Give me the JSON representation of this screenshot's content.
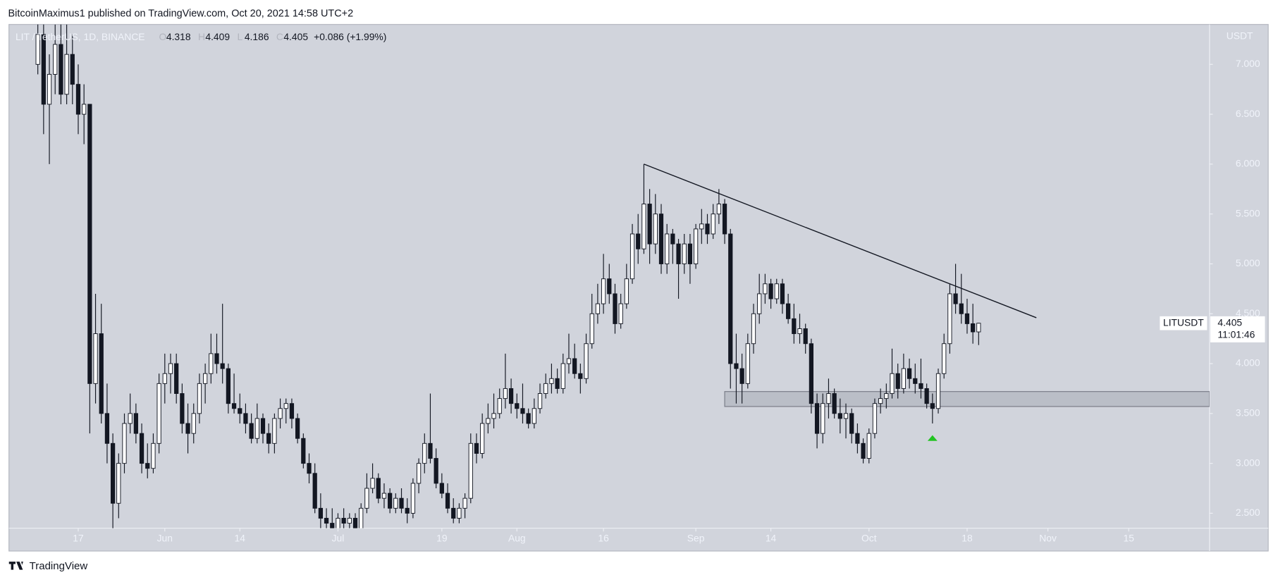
{
  "header": {
    "published": "BitcoinMaximus1 published on TradingView.com, Oct 20, 2021 14:58 UTC+2",
    "brand": "TradingView"
  },
  "chart_data": {
    "type": "candlestick",
    "legend": {
      "symbol": "LIT / TetherUS, 1D, BINANCE",
      "ohlc_labels": [
        "O",
        "H",
        "L",
        "C"
      ],
      "change": "+0.086 (+1.99%)"
    },
    "price_label": {
      "ticker": "LITUSDT",
      "countdown": "11:01:46"
    },
    "y_axis_label": "USDT",
    "x": [
      "May 10",
      "May 11",
      "May 12",
      "May 13",
      "May 14",
      "May 15",
      "May 16",
      "May 17",
      "May 18",
      "May 19",
      "May 20",
      "May 21",
      "May 22",
      "May 23",
      "May 24",
      "May 25",
      "May 26",
      "May 27",
      "May 28",
      "May 29",
      "May 30",
      "May 31",
      "Jun 1",
      "Jun 2",
      "Jun 3",
      "Jun 4",
      "Jun 5",
      "Jun 6",
      "Jun 7",
      "Jun 8",
      "Jun 9",
      "Jun 10",
      "Jun 11",
      "Jun 12",
      "Jun 13",
      "Jun 14",
      "Jun 15",
      "Jun 16",
      "Jun 17",
      "Jun 18",
      "Jun 19",
      "Jun 20",
      "Jun 21",
      "Jun 22",
      "Jun 23",
      "Jun 24",
      "Jun 25",
      "Jun 26",
      "Jun 27",
      "Jun 28",
      "Jun 29",
      "Jun 30",
      "Jul 1",
      "Jul 2",
      "Jul 3",
      "Jul 4",
      "Jul 5",
      "Jul 6",
      "Jul 7",
      "Jul 8",
      "Jul 9",
      "Jul 10",
      "Jul 11",
      "Jul 12",
      "Jul 13",
      "Jul 14",
      "Jul 15",
      "Jul 16",
      "Jul 17",
      "Jul 18",
      "Jul 19",
      "Jul 20",
      "Jul 21",
      "Jul 22",
      "Jul 23",
      "Jul 24",
      "Jul 25",
      "Jul 26",
      "Jul 27",
      "Jul 28",
      "Jul 29",
      "Jul 30",
      "Jul 31",
      "Aug 1",
      "Aug 2",
      "Aug 3",
      "Aug 4",
      "Aug 5",
      "Aug 6",
      "Aug 7",
      "Aug 8",
      "Aug 9",
      "Aug 10",
      "Aug 11",
      "Aug 12",
      "Aug 13",
      "Aug 14",
      "Aug 15",
      "Aug 16",
      "Aug 17",
      "Aug 18",
      "Aug 19",
      "Aug 20",
      "Aug 21",
      "Aug 22",
      "Aug 23",
      "Aug 24",
      "Aug 25",
      "Aug 26",
      "Aug 27",
      "Aug 28",
      "Aug 29",
      "Aug 30",
      "Aug 31",
      "Sep 1",
      "Sep 2",
      "Sep 3",
      "Sep 4",
      "Sep 5",
      "Sep 6",
      "Sep 7",
      "Sep 8",
      "Sep 9",
      "Sep 10",
      "Sep 11",
      "Sep 12",
      "Sep 13",
      "Sep 14",
      "Sep 15",
      "Sep 16",
      "Sep 17",
      "Sep 18",
      "Sep 19",
      "Sep 20",
      "Sep 21",
      "Sep 22",
      "Sep 23",
      "Sep 24",
      "Sep 25",
      "Sep 26",
      "Sep 27",
      "Sep 28",
      "Sep 29",
      "Sep 30",
      "Oct 1",
      "Oct 2",
      "Oct 3",
      "Oct 4",
      "Oct 5",
      "Oct 6",
      "Oct 7",
      "Oct 8",
      "Oct 9",
      "Oct 10",
      "Oct 11",
      "Oct 12",
      "Oct 13",
      "Oct 14",
      "Oct 15",
      "Oct 16",
      "Oct 17",
      "Oct 18",
      "Oct 19",
      "Oct 20"
    ],
    "candles": [
      [
        7.0,
        7.6,
        6.9,
        7.3
      ],
      [
        7.3,
        7.5,
        6.3,
        6.6
      ],
      [
        6.6,
        7.1,
        6.0,
        6.9
      ],
      [
        6.9,
        7.4,
        6.7,
        7.2
      ],
      [
        7.2,
        7.5,
        6.6,
        6.7
      ],
      [
        6.7,
        7.4,
        6.6,
        7.1
      ],
      [
        7.1,
        7.3,
        6.6,
        6.8
      ],
      [
        6.8,
        7.0,
        6.3,
        6.5
      ],
      [
        6.5,
        6.8,
        6.2,
        6.6
      ],
      [
        6.6,
        6.6,
        3.3,
        3.8
      ],
      [
        3.8,
        4.7,
        3.6,
        4.3
      ],
      [
        4.3,
        4.6,
        3.4,
        3.5
      ],
      [
        3.5,
        3.8,
        3.0,
        3.2
      ],
      [
        3.2,
        3.3,
        2.3,
        2.6
      ],
      [
        2.6,
        3.1,
        2.45,
        3.0
      ],
      [
        3.0,
        3.5,
        2.9,
        3.4
      ],
      [
        3.4,
        3.7,
        3.3,
        3.5
      ],
      [
        3.5,
        3.6,
        3.2,
        3.3
      ],
      [
        3.3,
        3.4,
        2.9,
        3.0
      ],
      [
        3.0,
        3.2,
        2.85,
        2.95
      ],
      [
        2.95,
        3.3,
        2.9,
        3.2
      ],
      [
        3.2,
        3.9,
        3.1,
        3.8
      ],
      [
        3.8,
        4.1,
        3.6,
        3.9
      ],
      [
        3.9,
        4.1,
        3.7,
        4.0
      ],
      [
        4.0,
        4.1,
        3.6,
        3.7
      ],
      [
        3.7,
        3.8,
        3.3,
        3.4
      ],
      [
        3.4,
        3.6,
        3.1,
        3.3
      ],
      [
        3.3,
        3.6,
        3.2,
        3.5
      ],
      [
        3.5,
        3.9,
        3.4,
        3.8
      ],
      [
        3.8,
        4.0,
        3.6,
        3.9
      ],
      [
        3.9,
        4.3,
        3.8,
        4.1
      ],
      [
        4.1,
        4.3,
        3.9,
        4.0
      ],
      [
        4.0,
        4.6,
        3.8,
        3.95
      ],
      [
        3.95,
        4.0,
        3.5,
        3.6
      ],
      [
        3.6,
        3.9,
        3.5,
        3.55
      ],
      [
        3.55,
        3.7,
        3.4,
        3.5
      ],
      [
        3.5,
        3.6,
        3.3,
        3.4
      ],
      [
        3.4,
        3.5,
        3.2,
        3.25
      ],
      [
        3.25,
        3.6,
        3.2,
        3.45
      ],
      [
        3.45,
        3.5,
        3.2,
        3.3
      ],
      [
        3.3,
        3.4,
        3.1,
        3.2
      ],
      [
        3.2,
        3.5,
        3.1,
        3.45
      ],
      [
        3.45,
        3.65,
        3.35,
        3.55
      ],
      [
        3.55,
        3.65,
        3.4,
        3.6
      ],
      [
        3.6,
        3.65,
        3.35,
        3.45
      ],
      [
        3.45,
        3.5,
        3.2,
        3.25
      ],
      [
        3.25,
        3.3,
        2.95,
        3.0
      ],
      [
        3.0,
        3.1,
        2.8,
        2.9
      ],
      [
        2.9,
        3.0,
        2.5,
        2.55
      ],
      [
        2.55,
        2.7,
        2.35,
        2.45
      ],
      [
        2.45,
        2.55,
        2.3,
        2.4
      ],
      [
        2.4,
        2.55,
        2.25,
        2.3
      ],
      [
        2.3,
        2.5,
        2.2,
        2.45
      ],
      [
        2.45,
        2.55,
        2.3,
        2.4
      ],
      [
        2.4,
        2.5,
        2.3,
        2.45
      ],
      [
        2.45,
        2.5,
        2.25,
        2.3
      ],
      [
        2.3,
        2.6,
        2.25,
        2.55
      ],
      [
        2.55,
        2.9,
        2.5,
        2.75
      ],
      [
        2.75,
        3.0,
        2.7,
        2.85
      ],
      [
        2.85,
        2.9,
        2.6,
        2.65
      ],
      [
        2.65,
        2.8,
        2.55,
        2.7
      ],
      [
        2.7,
        2.75,
        2.5,
        2.55
      ],
      [
        2.55,
        2.7,
        2.5,
        2.65
      ],
      [
        2.65,
        2.75,
        2.5,
        2.55
      ],
      [
        2.55,
        2.65,
        2.4,
        2.5
      ],
      [
        2.5,
        2.85,
        2.45,
        2.8
      ],
      [
        2.8,
        3.05,
        2.7,
        3.0
      ],
      [
        3.0,
        3.3,
        2.9,
        3.2
      ],
      [
        3.2,
        3.7,
        3.0,
        3.05
      ],
      [
        3.05,
        3.15,
        2.75,
        2.8
      ],
      [
        2.8,
        2.9,
        2.65,
        2.7
      ],
      [
        2.7,
        2.8,
        2.5,
        2.55
      ],
      [
        2.55,
        2.65,
        2.4,
        2.45
      ],
      [
        2.45,
        2.6,
        2.4,
        2.55
      ],
      [
        2.55,
        2.7,
        2.45,
        2.65
      ],
      [
        2.65,
        3.3,
        2.6,
        3.2
      ],
      [
        3.2,
        3.3,
        3.0,
        3.1
      ],
      [
        3.1,
        3.5,
        3.05,
        3.4
      ],
      [
        3.4,
        3.6,
        3.3,
        3.45
      ],
      [
        3.45,
        3.7,
        3.35,
        3.5
      ],
      [
        3.5,
        3.75,
        3.45,
        3.65
      ],
      [
        3.65,
        4.1,
        3.55,
        3.75
      ],
      [
        3.75,
        3.85,
        3.5,
        3.6
      ],
      [
        3.6,
        3.7,
        3.45,
        3.55
      ],
      [
        3.55,
        3.8,
        3.4,
        3.5
      ],
      [
        3.5,
        3.55,
        3.35,
        3.4
      ],
      [
        3.4,
        3.65,
        3.35,
        3.55
      ],
      [
        3.55,
        3.8,
        3.5,
        3.7
      ],
      [
        3.7,
        3.9,
        3.65,
        3.8
      ],
      [
        3.8,
        4.0,
        3.7,
        3.85
      ],
      [
        3.85,
        3.95,
        3.7,
        3.75
      ],
      [
        3.75,
        4.1,
        3.7,
        4.0
      ],
      [
        4.0,
        4.3,
        3.9,
        4.05
      ],
      [
        4.05,
        4.2,
        3.85,
        3.9
      ],
      [
        3.9,
        4.0,
        3.7,
        3.85
      ],
      [
        3.85,
        4.3,
        3.8,
        4.2
      ],
      [
        4.2,
        4.7,
        4.15,
        4.5
      ],
      [
        4.5,
        4.8,
        4.4,
        4.6
      ],
      [
        4.6,
        5.1,
        4.5,
        4.85
      ],
      [
        4.85,
        5.0,
        4.6,
        4.7
      ],
      [
        4.7,
        4.8,
        4.3,
        4.4
      ],
      [
        4.4,
        4.7,
        4.35,
        4.6
      ],
      [
        4.6,
        5.0,
        4.55,
        4.85
      ],
      [
        4.85,
        5.4,
        4.8,
        5.3
      ],
      [
        5.3,
        5.5,
        5.0,
        5.15
      ],
      [
        5.15,
        6.0,
        5.1,
        5.6
      ],
      [
        5.6,
        5.75,
        5.0,
        5.2
      ],
      [
        5.2,
        5.7,
        5.1,
        5.5
      ],
      [
        5.5,
        5.6,
        4.9,
        5.0
      ],
      [
        5.0,
        5.4,
        4.9,
        5.3
      ],
      [
        5.3,
        5.35,
        5.0,
        5.2
      ],
      [
        5.2,
        5.25,
        4.65,
        5.0
      ],
      [
        5.0,
        5.3,
        4.9,
        5.2
      ],
      [
        5.2,
        5.3,
        4.8,
        5.0
      ],
      [
        5.0,
        5.4,
        4.95,
        5.35
      ],
      [
        5.35,
        5.55,
        5.2,
        5.4
      ],
      [
        5.4,
        5.5,
        5.2,
        5.3
      ],
      [
        5.3,
        5.6,
        5.25,
        5.5
      ],
      [
        5.5,
        5.75,
        5.4,
        5.6
      ],
      [
        5.6,
        5.65,
        5.2,
        5.3
      ],
      [
        5.3,
        5.35,
        3.75,
        4.0
      ],
      [
        4.0,
        4.3,
        3.6,
        3.95
      ],
      [
        3.95,
        4.1,
        3.6,
        3.8
      ],
      [
        3.8,
        4.3,
        3.75,
        4.2
      ],
      [
        4.2,
        4.6,
        4.1,
        4.5
      ],
      [
        4.5,
        4.9,
        4.4,
        4.7
      ],
      [
        4.7,
        4.9,
        4.6,
        4.8
      ],
      [
        4.8,
        4.85,
        4.55,
        4.65
      ],
      [
        4.65,
        4.85,
        4.6,
        4.8
      ],
      [
        4.8,
        4.85,
        4.5,
        4.6
      ],
      [
        4.6,
        4.7,
        4.4,
        4.45
      ],
      [
        4.45,
        4.6,
        4.2,
        4.3
      ],
      [
        4.3,
        4.5,
        4.2,
        4.35
      ],
      [
        4.35,
        4.4,
        4.1,
        4.2
      ],
      [
        4.2,
        4.25,
        3.5,
        3.6
      ],
      [
        3.6,
        3.7,
        3.15,
        3.3
      ],
      [
        3.3,
        3.7,
        3.2,
        3.6
      ],
      [
        3.6,
        3.85,
        3.45,
        3.7
      ],
      [
        3.7,
        3.75,
        3.45,
        3.5
      ],
      [
        3.5,
        3.65,
        3.3,
        3.45
      ],
      [
        3.45,
        3.6,
        3.25,
        3.5
      ],
      [
        3.5,
        3.55,
        3.2,
        3.3
      ],
      [
        3.3,
        3.4,
        3.1,
        3.2
      ],
      [
        3.2,
        3.25,
        3.0,
        3.05
      ],
      [
        3.05,
        3.35,
        3.0,
        3.3
      ],
      [
        3.3,
        3.65,
        3.25,
        3.6
      ],
      [
        3.6,
        3.75,
        3.5,
        3.65
      ],
      [
        3.65,
        3.8,
        3.55,
        3.7
      ],
      [
        3.7,
        4.15,
        3.65,
        3.9
      ],
      [
        3.9,
        4.0,
        3.65,
        3.75
      ],
      [
        3.75,
        4.1,
        3.7,
        3.95
      ],
      [
        3.95,
        4.05,
        3.75,
        3.85
      ],
      [
        3.85,
        4.0,
        3.7,
        3.8
      ],
      [
        3.8,
        4.05,
        3.65,
        3.75
      ],
      [
        3.75,
        3.8,
        3.55,
        3.6
      ],
      [
        3.6,
        3.7,
        3.4,
        3.55
      ],
      [
        3.55,
        3.95,
        3.5,
        3.9
      ],
      [
        3.9,
        4.3,
        3.85,
        4.2
      ],
      [
        4.2,
        4.8,
        4.1,
        4.7
      ],
      [
        4.7,
        5.0,
        4.5,
        4.6
      ],
      [
        4.6,
        4.9,
        4.4,
        4.5
      ],
      [
        4.5,
        4.65,
        4.3,
        4.4
      ],
      [
        4.4,
        4.6,
        4.2,
        4.318
      ],
      [
        4.318,
        4.409,
        4.186,
        4.405
      ]
    ],
    "up_color": "#ffffff",
    "down_color": "#131722",
    "trendline": {
      "x": [
        "Aug 23",
        "Oct 30"
      ],
      "y": [
        6.0,
        4.46
      ],
      "color": "#131722"
    },
    "zone": {
      "x": [
        "Sep 6",
        "Nov 29"
      ],
      "y": [
        3.57,
        3.72
      ]
    },
    "marker": {
      "x": "Oct 12",
      "y": 3.25,
      "color": "#22c322"
    },
    "xlim": [
      "May 5",
      "Nov 29"
    ],
    "xticks": [
      {
        "value": "May 17",
        "label": "17"
      },
      {
        "value": "Jun 1",
        "label": "Jun"
      },
      {
        "value": "Jun 14",
        "label": "14"
      },
      {
        "value": "Jul 1",
        "label": "Jul"
      },
      {
        "value": "Jul 19",
        "label": "19"
      },
      {
        "value": "Aug 1",
        "label": "Aug"
      },
      {
        "value": "Aug 16",
        "label": "16"
      },
      {
        "value": "Sep 1",
        "label": "Sep"
      },
      {
        "value": "Sep 14",
        "label": "14"
      },
      {
        "value": "Oct 1",
        "label": "Oct"
      },
      {
        "value": "Oct 18",
        "label": "18"
      },
      {
        "value": "Nov 1",
        "label": "Nov"
      },
      {
        "value": "Nov 15",
        "label": "15"
      }
    ],
    "ylim": [
      2.35,
      7.4
    ],
    "yticks": [
      {
        "value": 2.5,
        "label": "2.500"
      },
      {
        "value": 3,
        "label": "3.000"
      },
      {
        "value": 3.5,
        "label": "3.500"
      },
      {
        "value": 4,
        "label": "4.000"
      },
      {
        "value": 4.5,
        "label": "4.500"
      },
      {
        "value": 5,
        "label": "5.000"
      },
      {
        "value": 5.5,
        "label": "5.500"
      },
      {
        "value": 6,
        "label": "6.000"
      },
      {
        "value": 6.5,
        "label": "6.500"
      },
      {
        "value": 7,
        "label": "7.000"
      }
    ]
  }
}
